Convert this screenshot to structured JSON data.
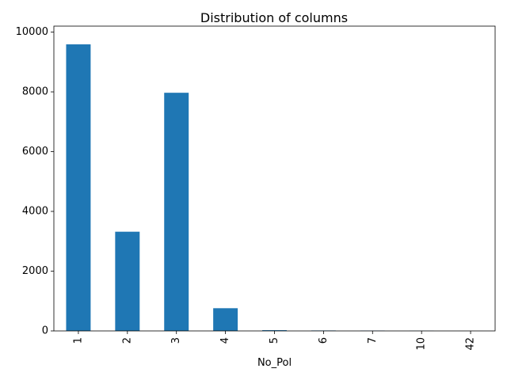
{
  "chart_data": {
    "type": "bar",
    "title": "Distribution of columns",
    "xlabel": "No_Pol",
    "ylabel": "",
    "categories": [
      "1",
      "2",
      "3",
      "4",
      "5",
      "6",
      "7",
      "10",
      "42"
    ],
    "values": [
      9590,
      3320,
      7970,
      760,
      25,
      15,
      10,
      5,
      1
    ],
    "ylim": [
      0,
      10200
    ],
    "yticks": [
      0,
      2000,
      4000,
      6000,
      8000,
      10000
    ],
    "bar_color": "#1f77b4",
    "grid": false,
    "x_tick_rotation": "vertical"
  }
}
